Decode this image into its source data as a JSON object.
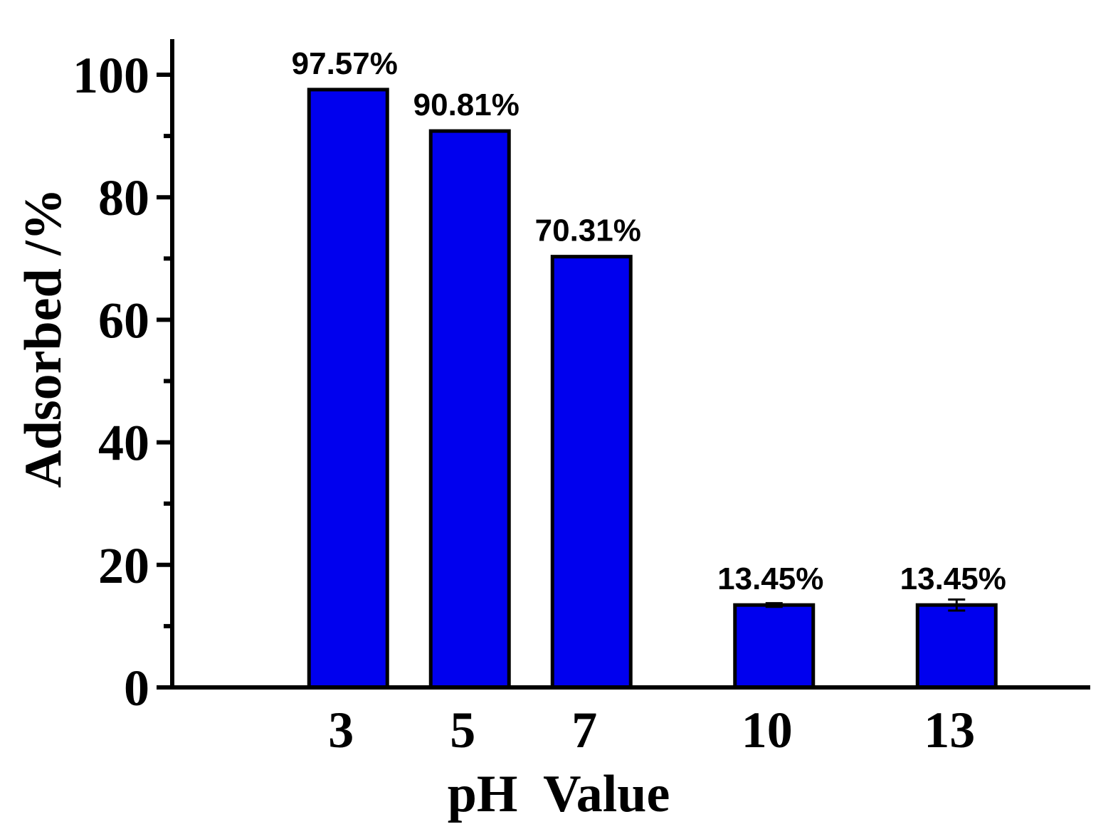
{
  "chart_data": {
    "type": "bar",
    "categories": [
      "3",
      "5",
      "7",
      "10",
      "13"
    ],
    "x": [
      3,
      5,
      7,
      10,
      13
    ],
    "values": [
      97.57,
      90.81,
      70.31,
      13.45,
      13.45
    ],
    "error_bars": [
      0,
      0,
      0,
      0.3,
      0.9
    ],
    "data_labels": [
      "97.57%",
      "90.81%",
      "70.31%",
      "13.45%",
      "13.45%"
    ],
    "xlabel": "pH  Value",
    "ylabel": "Adsorbed /%",
    "ylim": [
      0,
      105
    ],
    "xlim": [
      0.5,
      14.5
    ],
    "yticks": [
      0,
      20,
      40,
      60,
      80,
      100
    ],
    "yminor_step": 10,
    "grid": false,
    "legend": "none",
    "bar_color": "#0000ee",
    "edge_color": "#000000"
  }
}
